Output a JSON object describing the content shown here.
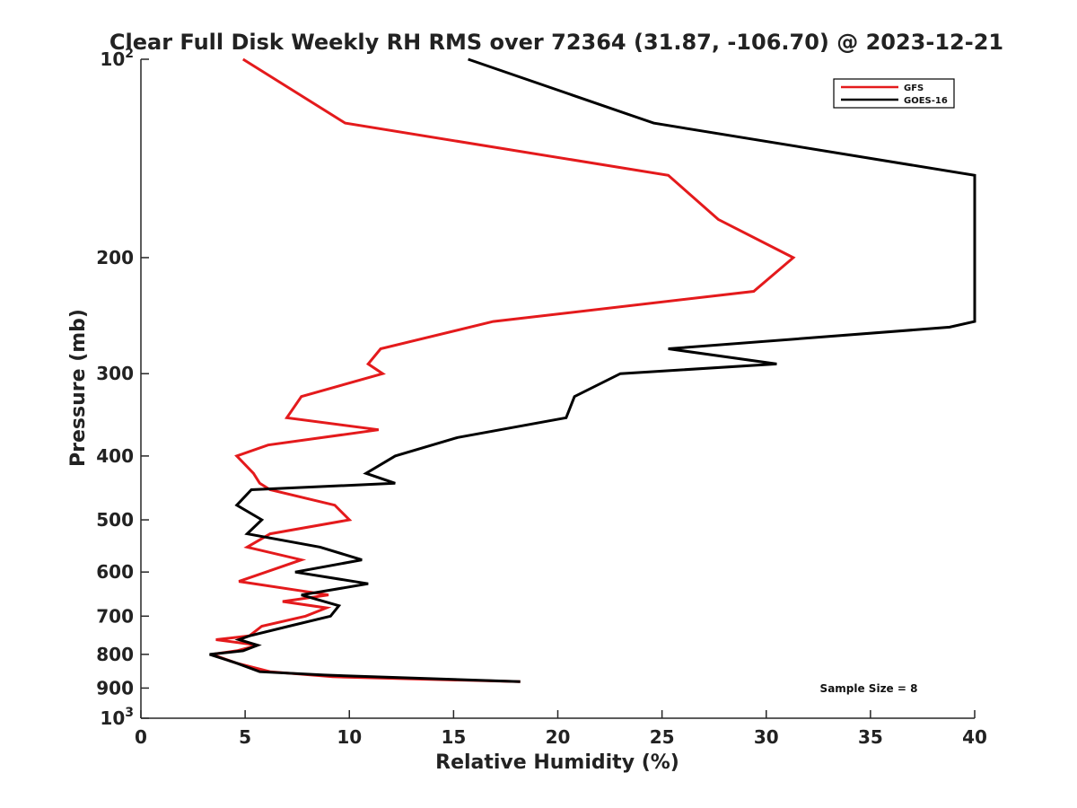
{
  "chart_data": {
    "type": "line",
    "title": "Clear Full Disk Weekly RH RMS over 72364 (31.87, -106.70) @ 2023-12-21",
    "xlabel": "Relative Humidity (%)",
    "ylabel": "Pressure (mb)",
    "xlim": [
      0,
      40
    ],
    "ylim": [
      100,
      1000
    ],
    "y_scale": "log",
    "y_reversed": true,
    "grid": false,
    "legend_position": "top-right",
    "x_ticks": [
      "0",
      "5",
      "10",
      "15",
      "20",
      "25",
      "30",
      "35",
      "40"
    ],
    "y_ticks": [
      {
        "value": 100,
        "base": "10",
        "exp": "2"
      },
      {
        "value": 200,
        "label": "200"
      },
      {
        "value": 300,
        "label": "300"
      },
      {
        "value": 400,
        "label": "400"
      },
      {
        "value": 500,
        "label": "500"
      },
      {
        "value": 600,
        "label": "600"
      },
      {
        "value": 700,
        "label": "700"
      },
      {
        "value": 800,
        "label": "800"
      },
      {
        "value": 900,
        "label": "900"
      },
      {
        "value": 1000,
        "base": "10",
        "exp": "3"
      }
    ],
    "series": [
      {
        "name": "GFS",
        "color": "#e41a1c",
        "points": [
          [
            4.9,
            100
          ],
          [
            9.8,
            125
          ],
          [
            25.3,
            150
          ],
          [
            27.7,
            175
          ],
          [
            31.3,
            200
          ],
          [
            29.4,
            225
          ],
          [
            16.9,
            250
          ],
          [
            11.5,
            275
          ],
          [
            10.9,
            290
          ],
          [
            11.6,
            300
          ],
          [
            7.7,
            325
          ],
          [
            7.0,
            350
          ],
          [
            11.4,
            365
          ],
          [
            6.1,
            385
          ],
          [
            4.6,
            400
          ],
          [
            5.4,
            425
          ],
          [
            5.7,
            440
          ],
          [
            6.2,
            450
          ],
          [
            9.3,
            475
          ],
          [
            10.0,
            500
          ],
          [
            6.2,
            525
          ],
          [
            5.1,
            550
          ],
          [
            7.7,
            575
          ],
          [
            6.0,
            600
          ],
          [
            4.7,
            620
          ],
          [
            9.0,
            650
          ],
          [
            6.8,
            665
          ],
          [
            8.9,
            680
          ],
          [
            7.9,
            700
          ],
          [
            5.8,
            725
          ],
          [
            5.2,
            750
          ],
          [
            3.6,
            760
          ],
          [
            5.6,
            775
          ],
          [
            4.6,
            790
          ],
          [
            3.4,
            800
          ],
          [
            4.6,
            825
          ],
          [
            6.2,
            850
          ],
          [
            9.2,
            865
          ],
          [
            18.2,
            880
          ]
        ]
      },
      {
        "name": "GOES-16",
        "color": "#000000",
        "points": [
          [
            15.7,
            100
          ],
          [
            24.6,
            125
          ],
          [
            40.0,
            150
          ],
          [
            40.0,
            250
          ],
          [
            38.8,
            255
          ],
          [
            25.3,
            275
          ],
          [
            30.5,
            290
          ],
          [
            23.0,
            300
          ],
          [
            20.8,
            325
          ],
          [
            20.4,
            350
          ],
          [
            15.2,
            375
          ],
          [
            12.2,
            400
          ],
          [
            10.8,
            425
          ],
          [
            12.2,
            440
          ],
          [
            5.3,
            450
          ],
          [
            4.6,
            475
          ],
          [
            5.8,
            500
          ],
          [
            5.1,
            525
          ],
          [
            8.6,
            550
          ],
          [
            10.6,
            575
          ],
          [
            7.4,
            600
          ],
          [
            10.9,
            625
          ],
          [
            7.7,
            650
          ],
          [
            9.5,
            675
          ],
          [
            9.1,
            700
          ],
          [
            7.1,
            725
          ],
          [
            5.2,
            750
          ],
          [
            4.7,
            760
          ],
          [
            5.6,
            775
          ],
          [
            4.9,
            790
          ],
          [
            3.3,
            800
          ],
          [
            4.6,
            825
          ],
          [
            5.7,
            850
          ],
          [
            8.8,
            860
          ],
          [
            18.2,
            880
          ]
        ]
      }
    ],
    "annotations": [
      "Sample Size = 8"
    ]
  }
}
